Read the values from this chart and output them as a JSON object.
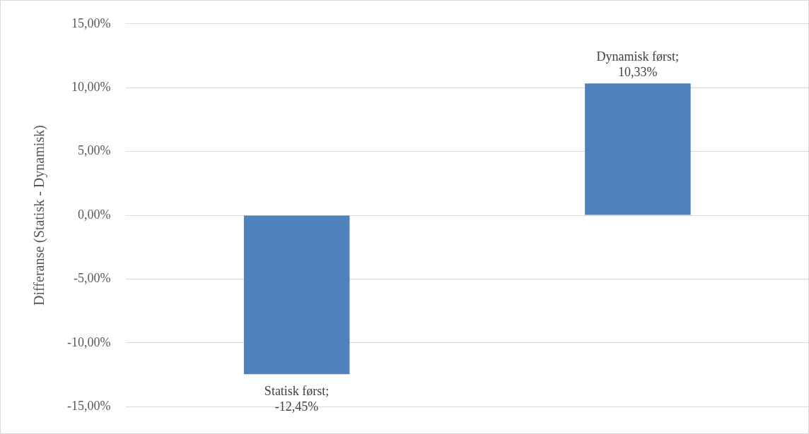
{
  "chart_data": {
    "type": "bar",
    "ylabel": "Differanse (Statisk - Dynamisk)",
    "categories": [
      null,
      null
    ],
    "values": [
      -12.45,
      10.33
    ],
    "color": "#4f81bd",
    "value_labels": [
      "Statisk først; -12,45%",
      "Dynamisk først; 10,33%"
    ],
    "ylim": [
      -15,
      15
    ],
    "yticks": [
      {
        "value": -15,
        "label": "-15,00%"
      },
      {
        "value": -10,
        "label": "-10,00%"
      },
      {
        "value": -5,
        "label": "-5,00%"
      },
      {
        "value": 0,
        "label": "0,00%"
      },
      {
        "value": 5,
        "label": "5,00%"
      },
      {
        "value": 10,
        "label": "10,00%"
      },
      {
        "value": 15,
        "label": "15,00%"
      }
    ],
    "grid": "y"
  }
}
